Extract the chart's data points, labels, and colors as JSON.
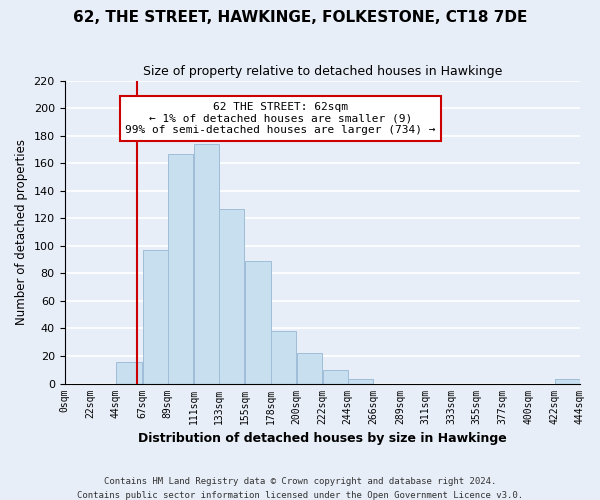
{
  "title": "62, THE STREET, HAWKINGE, FOLKESTONE, CT18 7DE",
  "subtitle": "Size of property relative to detached houses in Hawkinge",
  "xlabel": "Distribution of detached houses by size in Hawkinge",
  "ylabel": "Number of detached properties",
  "bin_edges": [
    0,
    22,
    44,
    67,
    89,
    111,
    133,
    155,
    178,
    200,
    222,
    244,
    266,
    289,
    311,
    333,
    355,
    377,
    400,
    422,
    444
  ],
  "bin_labels": [
    "0sqm",
    "22sqm",
    "44sqm",
    "67sqm",
    "89sqm",
    "111sqm",
    "133sqm",
    "155sqm",
    "178sqm",
    "200sqm",
    "222sqm",
    "244sqm",
    "266sqm",
    "289sqm",
    "311sqm",
    "333sqm",
    "355sqm",
    "377sqm",
    "400sqm",
    "422sqm",
    "444sqm"
  ],
  "counts": [
    0,
    0,
    16,
    97,
    167,
    174,
    127,
    89,
    38,
    22,
    10,
    3,
    0,
    0,
    0,
    0,
    0,
    0,
    0,
    3
  ],
  "bar_color": "#c8dff0",
  "bar_edge_color": "#a0bdd8",
  "vline_x": 62,
  "vline_color": "#cc0000",
  "annotation_text": "62 THE STREET: 62sqm\n← 1% of detached houses are smaller (9)\n99% of semi-detached houses are larger (734) →",
  "annotation_box_color": "white",
  "annotation_box_edge": "#cc0000",
  "ylim": [
    0,
    220
  ],
  "yticks": [
    0,
    20,
    40,
    60,
    80,
    100,
    120,
    140,
    160,
    180,
    200,
    220
  ],
  "footer1": "Contains HM Land Registry data © Crown copyright and database right 2024.",
  "footer2": "Contains public sector information licensed under the Open Government Licence v3.0.",
  "bg_color": "#e8eef8",
  "grid_color": "white"
}
